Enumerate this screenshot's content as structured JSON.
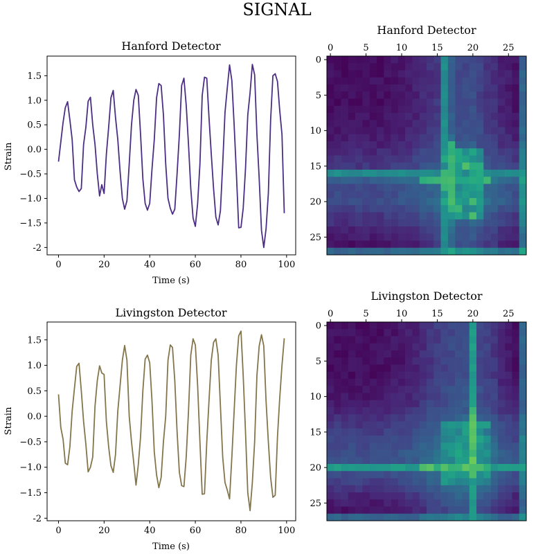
{
  "figure": {
    "suptitle": "SIGNAL"
  },
  "chart_data": [
    {
      "type": "line",
      "title": "Hanford Detector",
      "xlabel": "Time (s)",
      "ylabel": "Strain",
      "xlim": [
        -5,
        104
      ],
      "ylim": [
        -2.15,
        1.9
      ],
      "xticks": [
        0,
        20,
        40,
        60,
        80,
        100
      ],
      "yticks": [
        1.5,
        1.0,
        0.5,
        0.0,
        -0.5,
        -1.0,
        -1.5,
        -2.0
      ],
      "series": [
        {
          "color": "#4b2d83",
          "x": [
            0,
            1,
            2,
            3,
            4,
            5,
            6,
            7,
            8,
            9,
            10,
            11,
            12,
            13,
            14,
            15,
            16,
            17,
            18,
            19,
            20,
            21,
            22,
            23,
            24,
            25,
            26,
            27,
            28,
            29,
            30,
            31,
            32,
            33,
            34,
            35,
            36,
            37,
            38,
            39,
            40,
            41,
            42,
            43,
            44,
            45,
            46,
            47,
            48,
            49,
            50,
            51,
            52,
            53,
            54,
            55,
            56,
            57,
            58,
            59,
            60,
            61,
            62,
            63,
            64,
            65,
            66,
            67,
            68,
            69,
            70,
            71,
            72,
            73,
            74,
            75,
            76,
            77,
            78,
            79,
            80,
            81,
            82,
            83,
            84,
            85,
            86,
            87,
            88,
            89,
            90,
            91,
            92,
            93,
            94,
            95,
            96,
            97,
            98,
            99
          ],
          "y": [
            -0.25,
            0.15,
            0.55,
            0.85,
            0.97,
            0.6,
            0.2,
            -0.62,
            -0.77,
            -0.86,
            -0.8,
            0.1,
            0.45,
            0.98,
            1.06,
            0.5,
            0.1,
            -0.5,
            -0.95,
            -0.72,
            -0.9,
            -0.1,
            0.45,
            1.05,
            1.2,
            0.65,
            0.2,
            -0.45,
            -1.0,
            -1.22,
            -1.05,
            -0.3,
            0.5,
            1.0,
            1.22,
            1.1,
            0.3,
            -0.6,
            -1.1,
            -1.24,
            -1.1,
            -0.4,
            0.2,
            1.05,
            1.34,
            1.3,
            0.7,
            -0.3,
            -1.0,
            -1.2,
            -1.32,
            -1.22,
            -0.5,
            0.3,
            1.3,
            1.45,
            0.9,
            0.1,
            -0.8,
            -1.4,
            -1.57,
            -1.1,
            -0.3,
            1.1,
            1.47,
            1.45,
            0.65,
            -0.1,
            -0.8,
            -1.38,
            -1.54,
            -1.25,
            -0.3,
            0.75,
            1.25,
            1.72,
            1.4,
            0.5,
            -0.5,
            -1.6,
            -1.59,
            -1.2,
            -0.4,
            0.7,
            1.15,
            1.73,
            1.52,
            0.3,
            -0.6,
            -1.65,
            -2.0,
            -1.62,
            -0.9,
            0.6,
            1.5,
            1.54,
            1.38,
            0.8,
            0.3,
            -1.3
          ]
        }
      ]
    },
    {
      "type": "heatmap",
      "title": "Hanford Detector",
      "size": 28,
      "ticks": [
        0,
        5,
        10,
        15,
        20,
        25
      ],
      "colormap": "viridis",
      "vmin": 0,
      "vmax": 1
    },
    {
      "type": "line",
      "title": "Livingston Detector",
      "xlabel": "Time (s)",
      "ylabel": "Strain",
      "xlim": [
        -5,
        104
      ],
      "ylim": [
        -2.05,
        1.85
      ],
      "xticks": [
        0,
        20,
        40,
        60,
        80,
        100
      ],
      "yticks": [
        1.5,
        1.0,
        0.5,
        0.0,
        -0.5,
        -1.0,
        -1.5,
        -2.0
      ],
      "series": [
        {
          "color": "#83754b",
          "x": [
            0,
            1,
            2,
            3,
            4,
            5,
            6,
            7,
            8,
            9,
            10,
            11,
            12,
            13,
            14,
            15,
            16,
            17,
            18,
            19,
            20,
            21,
            22,
            23,
            24,
            25,
            26,
            27,
            28,
            29,
            30,
            31,
            32,
            33,
            34,
            35,
            36,
            37,
            38,
            39,
            40,
            41,
            42,
            43,
            44,
            45,
            46,
            47,
            48,
            49,
            50,
            51,
            52,
            53,
            54,
            55,
            56,
            57,
            58,
            59,
            60,
            61,
            62,
            63,
            64,
            65,
            66,
            67,
            68,
            69,
            70,
            71,
            72,
            73,
            74,
            75,
            76,
            77,
            78,
            79,
            80,
            81,
            82,
            83,
            84,
            85,
            86,
            87,
            88,
            89,
            90,
            91,
            92,
            93,
            94,
            95,
            96,
            97,
            98,
            99
          ],
          "y": [
            0.43,
            -0.22,
            -0.45,
            -0.92,
            -0.95,
            -0.6,
            0.1,
            0.55,
            0.98,
            1.04,
            0.5,
            -0.1,
            -0.55,
            -1.09,
            -1.0,
            -0.8,
            0.2,
            0.7,
            0.99,
            0.85,
            0.82,
            -0.1,
            -0.6,
            -0.97,
            -1.1,
            -0.75,
            0.1,
            0.6,
            1.1,
            1.39,
            1.1,
            0.0,
            -0.5,
            -0.92,
            -1.35,
            -0.95,
            -0.4,
            0.5,
            1.12,
            1.2,
            1.05,
            0.3,
            -0.7,
            -1.15,
            -1.4,
            -1.2,
            -0.5,
            0.0,
            1.1,
            1.4,
            1.35,
            0.7,
            -0.3,
            -1.1,
            -1.36,
            -1.38,
            -0.8,
            0.1,
            1.2,
            1.52,
            1.4,
            0.6,
            -0.5,
            -1.53,
            -1.52,
            -0.5,
            0.3,
            1.1,
            1.45,
            1.52,
            1.2,
            0.2,
            -0.8,
            -1.3,
            -1.45,
            -1.62,
            -0.8,
            0.1,
            1.0,
            1.58,
            1.67,
            0.8,
            -0.3,
            -1.5,
            -1.85,
            -1.3,
            -0.5,
            0.8,
            1.38,
            1.6,
            1.38,
            0.3,
            -0.5,
            -1.2,
            -1.59,
            -1.55,
            -0.4,
            0.35,
            1.0,
            1.53
          ]
        }
      ]
    },
    {
      "type": "heatmap",
      "title": "Livingston Detector",
      "size": 28,
      "ticks": [
        0,
        5,
        10,
        15,
        20,
        25
      ],
      "colormap": "viridis",
      "vmin": 0,
      "vmax": 1
    }
  ]
}
